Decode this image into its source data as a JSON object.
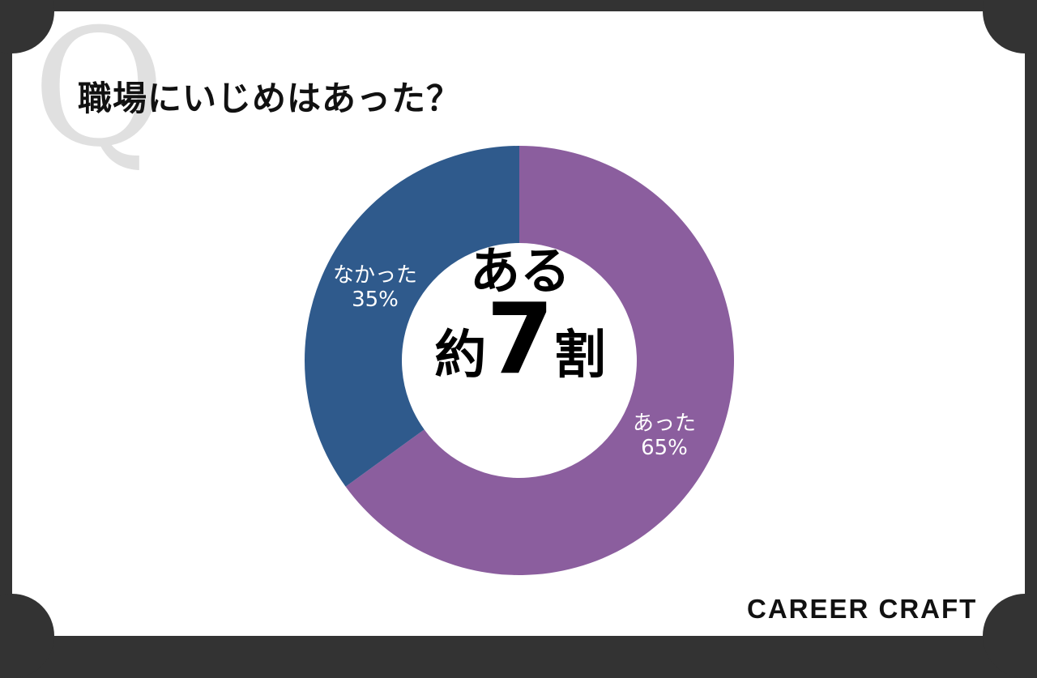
{
  "title": "職場にいじめはあった？",
  "q_mark": "Q",
  "logo": "CAREER CRAFT",
  "center": {
    "line1": "ある",
    "prefix": "約",
    "number": "7",
    "suffix": "割"
  },
  "chart_data": {
    "type": "pie",
    "donut": true,
    "categories": [
      "あった",
      "なかった"
    ],
    "values": [
      65,
      35
    ],
    "labels": [
      "65%",
      "35%"
    ],
    "colors": [
      "#8b5e9e",
      "#2f5a8c"
    ],
    "title": "職場にいじめはあった？"
  }
}
